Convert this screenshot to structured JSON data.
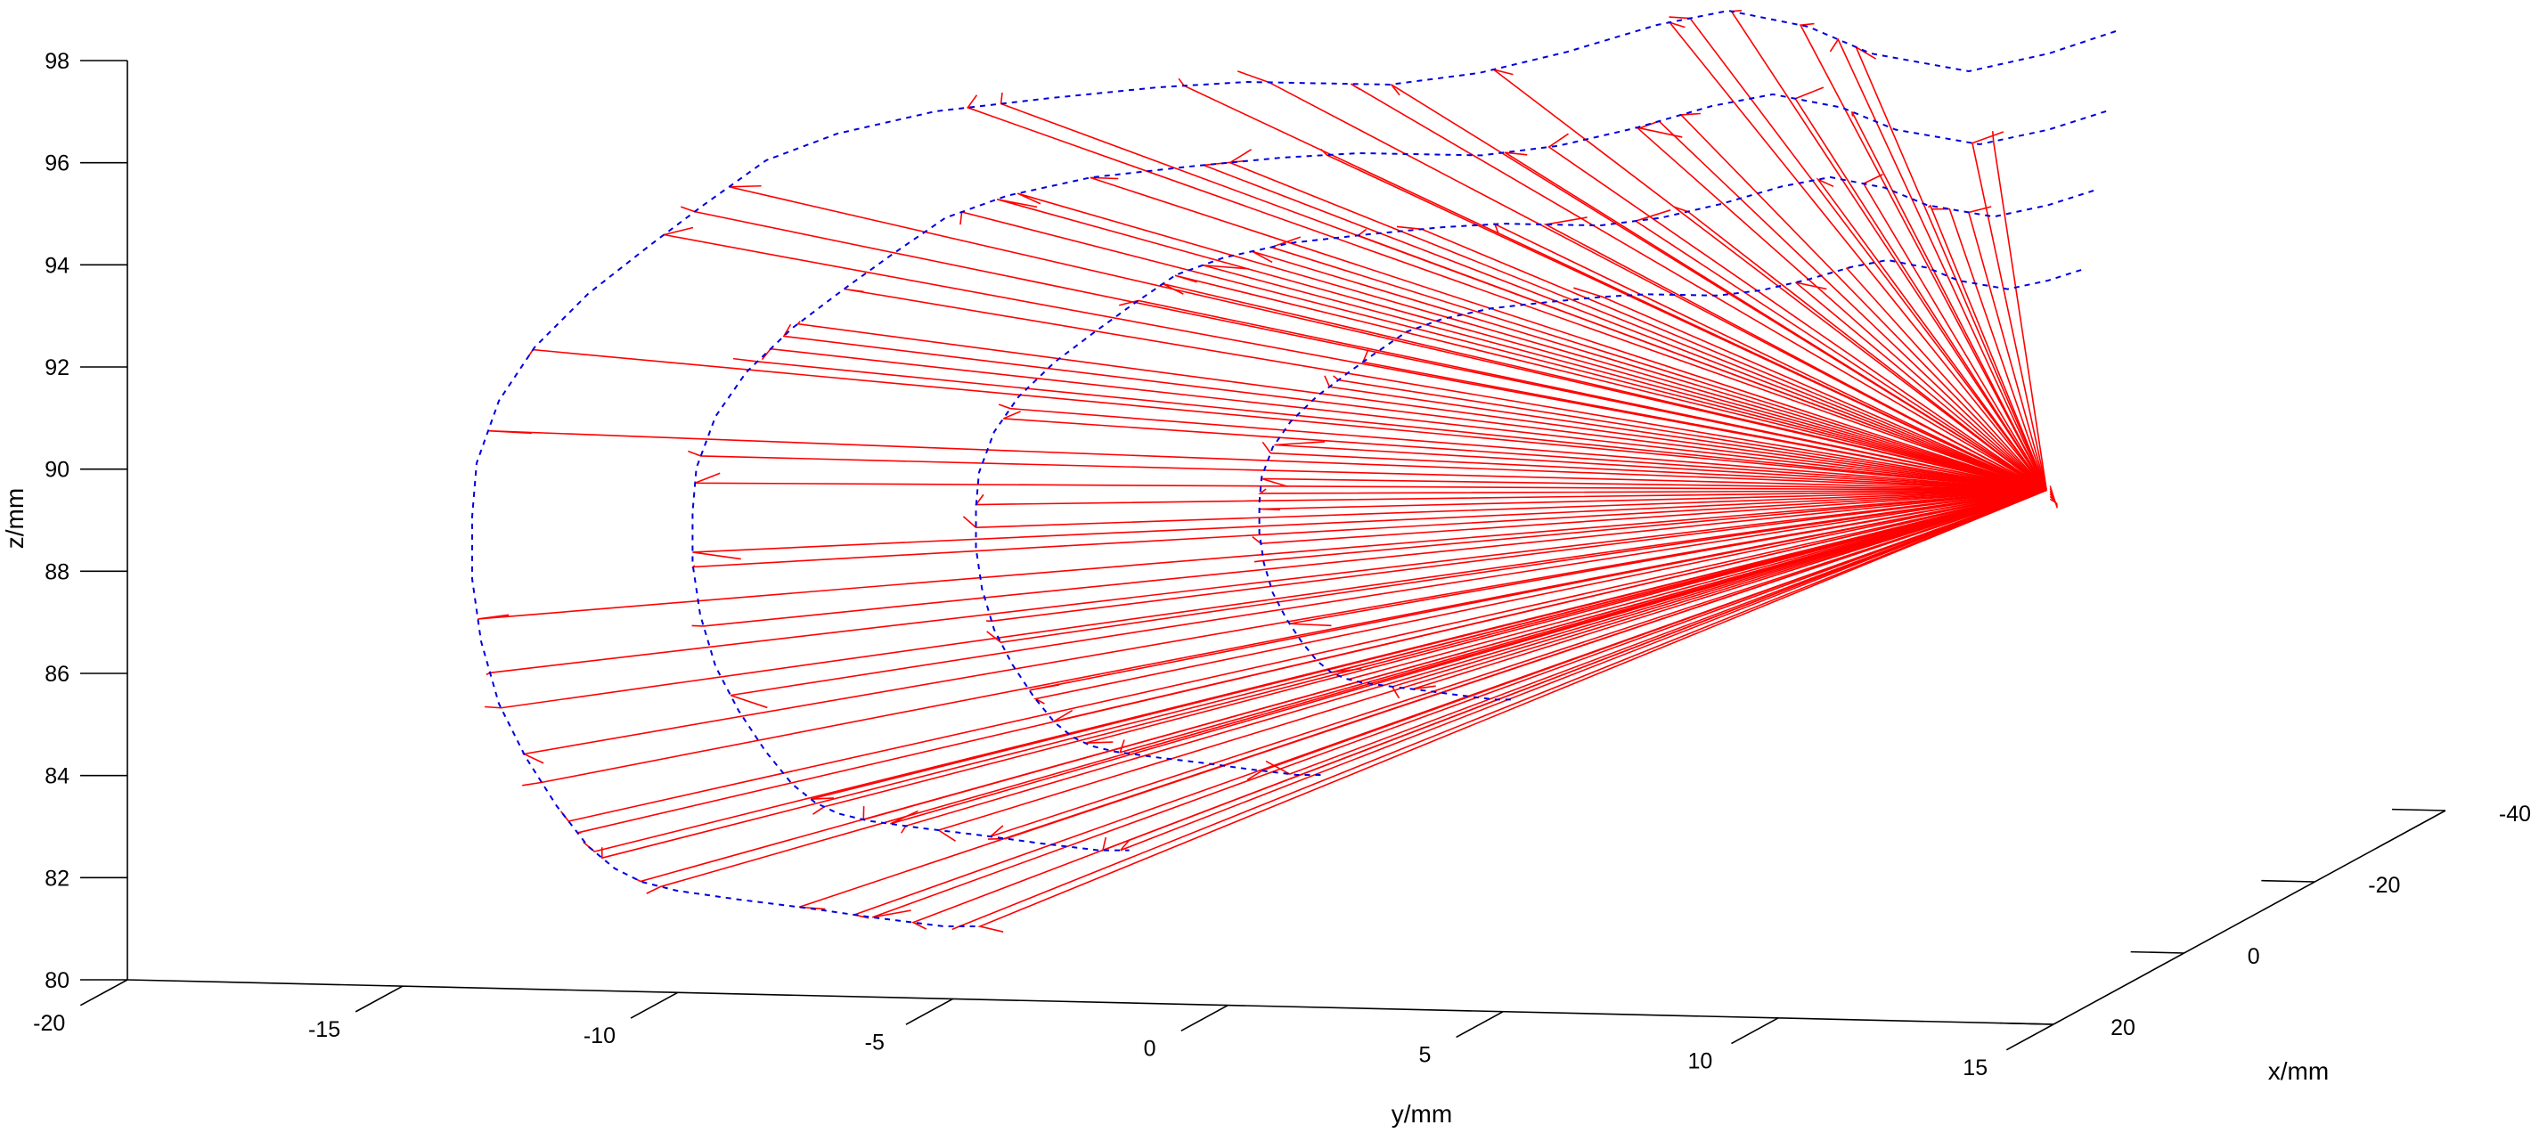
{
  "colors": {
    "ray": "#ff0000",
    "surface": "#0000dd",
    "axis": "#000000",
    "background": "#ffffff"
  },
  "chart_data": {
    "type": "line",
    "projection": "3d",
    "title": "",
    "xlabel": "x/mm",
    "ylabel": "y/mm",
    "zlabel": "z/mm",
    "xlim": [
      20,
      -40
    ],
    "ylim": [
      -20,
      15
    ],
    "zlim": [
      80,
      98
    ],
    "x_ticks": [
      "-40",
      "-20",
      "0",
      "20"
    ],
    "y_ticks": [
      "-20",
      "-15",
      "-10",
      "-5",
      "0",
      "5",
      "10",
      "15"
    ],
    "z_ticks": [
      "80",
      "82",
      "84",
      "86",
      "88",
      "90",
      "92",
      "94",
      "96",
      "98"
    ],
    "grid": false,
    "legend": "none",
    "series": [
      {
        "style": "solid",
        "color": "red",
        "focal_point": {
          "x": 0,
          "y": 12.5,
          "z": 89
        },
        "fan_rays": 120,
        "fan_y_range": [
          -13,
          3
        ],
        "fan_z_range": [
          81,
          96
        ]
      },
      {
        "style": "dashed",
        "color": "blue",
        "contours": 4
      }
    ]
  }
}
